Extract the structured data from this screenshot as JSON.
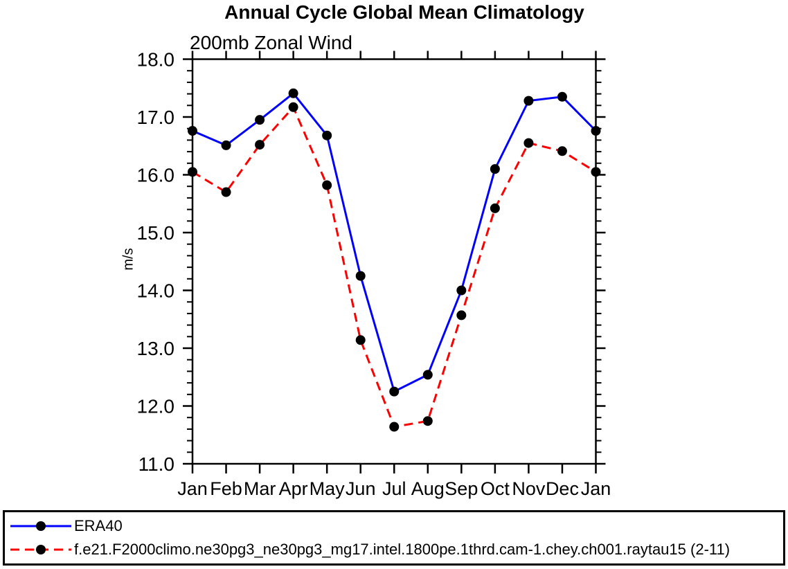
{
  "chart_data": {
    "type": "line",
    "title": "Annual Cycle Global Mean Climatology",
    "subtitle": "200mb Zonal Wind",
    "xlabel": "",
    "ylabel": "m/s",
    "categories": [
      "Jan",
      "Feb",
      "Mar",
      "Apr",
      "May",
      "Jun",
      "Jul",
      "Aug",
      "Sep",
      "Oct",
      "Nov",
      "Dec",
      "Jan"
    ],
    "ylim": [
      11.0,
      18.0
    ],
    "y_major_step": 1.0,
    "y_minor_step": 0.2,
    "y_tick_labels": [
      "11.0",
      "12.0",
      "13.0",
      "14.0",
      "15.0",
      "16.0",
      "17.0",
      "18.0"
    ],
    "grid": false,
    "legend_position": "bottom-outside-box",
    "axis_color": "#000000",
    "marker": {
      "shape": "filled-circle",
      "color": "#000000",
      "radius": 7
    },
    "series": [
      {
        "name": "ERA40",
        "color": "#0000ff",
        "line_style": "solid",
        "values": [
          16.76,
          16.51,
          16.95,
          17.41,
          16.68,
          14.25,
          12.25,
          12.54,
          14.0,
          16.1,
          17.28,
          17.35,
          16.76
        ]
      },
      {
        "name": "f.e21.F2000climo.ne30pg3_ne30pg3_mg17.intel.1800pe.1thrd.cam-1.chey.ch001.raytau15 (2-11)",
        "color": "#ff0000",
        "line_style": "dashed",
        "values": [
          16.05,
          15.7,
          16.52,
          17.17,
          15.82,
          13.14,
          11.64,
          11.74,
          13.57,
          15.42,
          16.55,
          16.41,
          16.05
        ]
      }
    ]
  }
}
